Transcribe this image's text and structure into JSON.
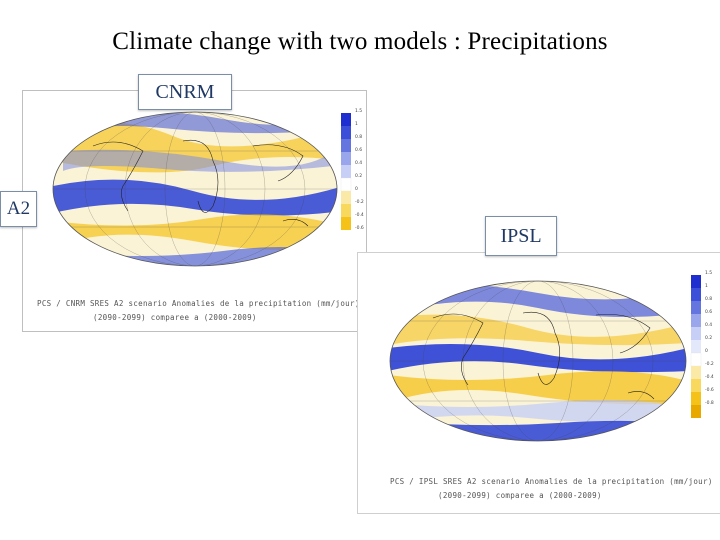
{
  "slide": {
    "title": "Climate change with two models : Precipitations"
  },
  "cnrm": {
    "model_label": "CNRM",
    "scenario_label": "A2",
    "caption_line1": "PCS / CNRM   SRES A2 scenario    Anomalies de la precipitation (mm/jour)",
    "caption_line2": "(2090-2099) comparee a (2000-2009)",
    "scale_ticks": [
      "1.5",
      "1",
      "0.8",
      "0.6",
      "0.4",
      "0.2",
      "0",
      "-0.2",
      "-0.4",
      "-0.6"
    ]
  },
  "ipsl": {
    "model_label": "IPSL",
    "caption_line1": "PCS / IPSL   SRES A2 scenario   Anomalies de la precipitation (mm/jour)",
    "caption_line2": "(2090-2099) comparee a (2000-2009)",
    "scale_ticks": [
      "1.5",
      "1",
      "0.8",
      "0.6",
      "0.4",
      "0.2",
      "0",
      "-0.2",
      "-0.4",
      "-0.6",
      "-0.8"
    ]
  },
  "colors": {
    "wet": "#2a3fd6",
    "wet_light": "#b9c2f2",
    "dry": "#f5c21a",
    "dry_light": "#fbe9a8",
    "neutral": "#ffffff"
  }
}
